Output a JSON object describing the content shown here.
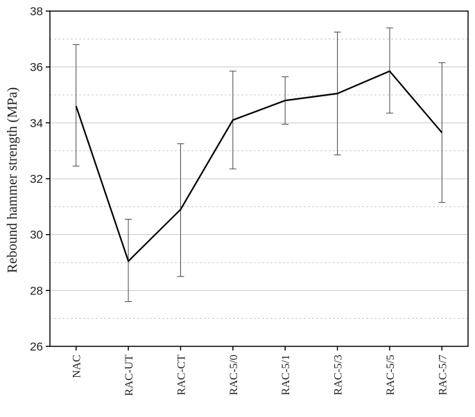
{
  "chart_data": {
    "type": "line",
    "title": "",
    "xlabel": "",
    "ylabel": "Rebound hammer strength (MPa)",
    "ylim": [
      26,
      38
    ],
    "yticks": [
      26,
      28,
      30,
      32,
      34,
      36,
      38
    ],
    "grid": "major and minor horizontal, light grey",
    "legend": "none",
    "categories": [
      "NAC",
      "RAC-UT",
      "RAC-CT",
      "RAC-5/0",
      "RAC-5/1",
      "RAC-5/3",
      "RAC-5/5",
      "RAC-5/7"
    ],
    "series": [
      {
        "values": [
          34.6,
          29.05,
          30.9,
          34.1,
          34.8,
          35.05,
          35.85,
          33.65
        ],
        "error_low": [
          32.45,
          27.6,
          28.5,
          32.35,
          33.95,
          32.85,
          34.35,
          31.15
        ],
        "error_high": [
          36.8,
          30.55,
          33.25,
          35.85,
          35.65,
          37.25,
          37.4,
          36.15
        ]
      }
    ],
    "colors": {
      "line": "#000000",
      "error_bar": "#444444",
      "grid": "#c8c8c8",
      "axis": "#000000"
    }
  }
}
